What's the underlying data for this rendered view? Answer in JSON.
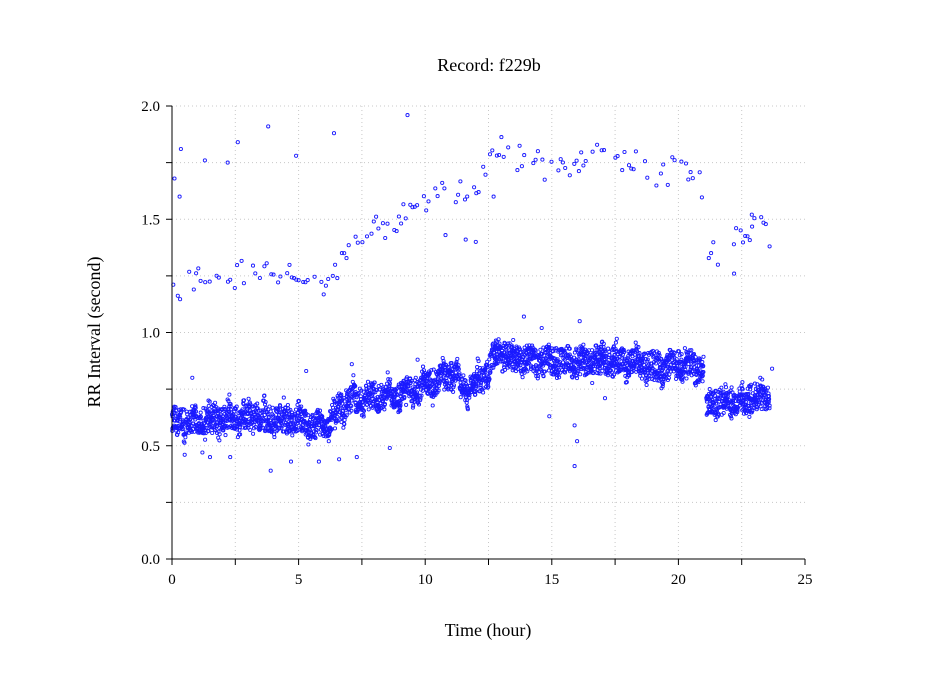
{
  "chart_data": {
    "type": "scatter",
    "title": "Record:  f229b",
    "xlabel": "Time (hour)",
    "ylabel": "RR Interval (second)",
    "xlim": [
      0,
      25
    ],
    "ylim": [
      0,
      2
    ],
    "x_ticks": [
      0,
      5,
      10,
      15,
      20,
      25
    ],
    "x_tick_labels": [
      "0",
      "5",
      "10",
      "15",
      "20",
      "25"
    ],
    "y_ticks": [
      0,
      0.5,
      1,
      1.5,
      2
    ],
    "y_tick_labels": [
      "0.0",
      "0.5",
      "1.0",
      "1.5",
      "2.0"
    ],
    "grid": true,
    "marker_color": "#1a1aff",
    "trend": [
      [
        0.0,
        0.6
      ],
      [
        1.0,
        0.61
      ],
      [
        2.0,
        0.62
      ],
      [
        3.0,
        0.63
      ],
      [
        4.0,
        0.62
      ],
      [
        5.0,
        0.62
      ],
      [
        5.6,
        0.58
      ],
      [
        6.2,
        0.6
      ],
      [
        6.6,
        0.66
      ],
      [
        7.0,
        0.7
      ],
      [
        8.0,
        0.72
      ],
      [
        9.0,
        0.73
      ],
      [
        10.0,
        0.76
      ],
      [
        10.5,
        0.79
      ],
      [
        11.2,
        0.82
      ],
      [
        11.5,
        0.74
      ],
      [
        12.0,
        0.78
      ],
      [
        12.4,
        0.82
      ],
      [
        12.8,
        0.91
      ],
      [
        13.5,
        0.89
      ],
      [
        14.5,
        0.88
      ],
      [
        15.5,
        0.87
      ],
      [
        16.5,
        0.87
      ],
      [
        17.5,
        0.88
      ],
      [
        18.0,
        0.87
      ],
      [
        18.5,
        0.86
      ],
      [
        19.0,
        0.85
      ],
      [
        19.5,
        0.84
      ],
      [
        20.0,
        0.86
      ],
      [
        20.5,
        0.85
      ],
      [
        21.0,
        0.84
      ],
      [
        21.1,
        0.69
      ],
      [
        22.0,
        0.7
      ],
      [
        22.5,
        0.69
      ],
      [
        23.0,
        0.72
      ],
      [
        23.5,
        0.71
      ]
    ],
    "segments": [
      [
        0.0,
        21.0
      ],
      [
        21.1,
        23.6
      ]
    ],
    "upper_band": [
      [
        0.0,
        1.15
      ],
      [
        1.0,
        1.25
      ],
      [
        2.0,
        1.22
      ],
      [
        3.0,
        1.28
      ],
      [
        4.0,
        1.27
      ],
      [
        5.0,
        1.24
      ],
      [
        6.0,
        1.2
      ],
      [
        7.0,
        1.38
      ],
      [
        8.0,
        1.45
      ],
      [
        9.0,
        1.5
      ],
      [
        10.0,
        1.58
      ],
      [
        11.0,
        1.62
      ],
      [
        12.0,
        1.6
      ],
      [
        12.6,
        1.84
      ],
      [
        13.5,
        1.78
      ],
      [
        15.0,
        1.72
      ],
      [
        16.0,
        1.75
      ],
      [
        17.0,
        1.78
      ],
      [
        18.0,
        1.76
      ],
      [
        19.0,
        1.7
      ],
      [
        20.0,
        1.72
      ],
      [
        20.9,
        1.66
      ],
      [
        21.1,
        1.4
      ],
      [
        21.8,
        1.3
      ],
      [
        22.5,
        1.45
      ],
      [
        23.5,
        1.45
      ]
    ],
    "outliers": [
      [
        0.1,
        1.68
      ],
      [
        0.3,
        1.6
      ],
      [
        0.35,
        1.81
      ],
      [
        1.3,
        1.76
      ],
      [
        2.2,
        1.75
      ],
      [
        2.6,
        1.84
      ],
      [
        3.8,
        1.91
      ],
      [
        4.9,
        1.78
      ],
      [
        6.4,
        1.88
      ],
      [
        9.3,
        1.96
      ],
      [
        10.8,
        1.43
      ],
      [
        11.6,
        1.41
      ],
      [
        12.0,
        1.4
      ],
      [
        0.5,
        0.46
      ],
      [
        1.2,
        0.47
      ],
      [
        1.5,
        0.45
      ],
      [
        2.3,
        0.45
      ],
      [
        3.9,
        0.39
      ],
      [
        4.7,
        0.43
      ],
      [
        5.8,
        0.43
      ],
      [
        6.6,
        0.44
      ],
      [
        7.3,
        0.45
      ],
      [
        8.6,
        0.49
      ],
      [
        15.9,
        0.41
      ],
      [
        16.0,
        0.52
      ],
      [
        15.9,
        0.59
      ],
      [
        14.9,
        0.63
      ],
      [
        17.1,
        0.71
      ],
      [
        13.9,
        1.07
      ],
      [
        14.6,
        1.02
      ],
      [
        16.1,
        1.05
      ],
      [
        23.7,
        0.84
      ],
      [
        23.6,
        1.38
      ],
      [
        22.9,
        1.52
      ],
      [
        12.7,
        1.6
      ],
      [
        22.2,
        1.26
      ],
      [
        0.8,
        0.8
      ],
      [
        5.3,
        0.83
      ],
      [
        7.1,
        0.86
      ],
      [
        9.7,
        0.88
      ]
    ]
  }
}
